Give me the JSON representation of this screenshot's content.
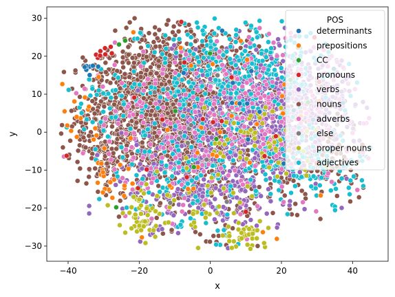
{
  "chart_data": {
    "type": "scatter",
    "xlabel": "x",
    "ylabel": "y",
    "xlim": [
      -46,
      50
    ],
    "ylim": [
      -34,
      33
    ],
    "xticks": [
      -40,
      -20,
      0,
      20,
      40
    ],
    "yticks": [
      -30,
      -20,
      -10,
      0,
      10,
      20,
      30
    ],
    "grid": false,
    "legend": {
      "title": "POS",
      "placement": "top-right",
      "entries": [
        {
          "name": "determinants",
          "color": "#1f77b4"
        },
        {
          "name": "prepositions",
          "color": "#ff7f0e"
        },
        {
          "name": "CC",
          "color": "#2ca02c"
        },
        {
          "name": "pronouns",
          "color": "#d62728"
        },
        {
          "name": "verbs",
          "color": "#9467bd"
        },
        {
          "name": "nouns",
          "color": "#8c564b"
        },
        {
          "name": "adverbs",
          "color": "#e377c2"
        },
        {
          "name": "else",
          "color": "#7f7f7f"
        },
        {
          "name": "proper nouns",
          "color": "#bcbd22"
        },
        {
          "name": "adjectives",
          "color": "#17becf"
        }
      ]
    },
    "series": [
      {
        "name": "nouns",
        "color": "#8c564b",
        "clusters": [
          {
            "x": -15,
            "y": 5,
            "sx": 10,
            "sy": 10,
            "n": 950
          },
          {
            "x": 0,
            "y": -5,
            "sx": 12,
            "sy": 10,
            "n": 450
          },
          {
            "x": -30,
            "y": 2,
            "sx": 5,
            "sy": 8,
            "n": 180
          },
          {
            "x": 28,
            "y": -5,
            "sx": 10,
            "sy": 7,
            "n": 180
          },
          {
            "x": -10,
            "y": 18,
            "sx": 9,
            "sy": 5,
            "n": 220
          },
          {
            "x": 5,
            "y": 12,
            "sx": 10,
            "sy": 8,
            "n": 200
          }
        ]
      },
      {
        "name": "verbs",
        "color": "#9467bd",
        "clusters": [
          {
            "x": 12,
            "y": 3,
            "sx": 11,
            "sy": 9,
            "n": 650
          },
          {
            "x": 28,
            "y": 10,
            "sx": 8,
            "sy": 6,
            "n": 250
          },
          {
            "x": 2,
            "y": -15,
            "sx": 9,
            "sy": 7,
            "n": 150
          },
          {
            "x": -12,
            "y": -12,
            "sx": 8,
            "sy": 8,
            "n": 120
          }
        ]
      },
      {
        "name": "adjectives",
        "color": "#17becf",
        "clusters": [
          {
            "x": 8,
            "y": 15,
            "sx": 13,
            "sy": 8,
            "n": 380
          },
          {
            "x": 28,
            "y": -8,
            "sx": 10,
            "sy": 5,
            "n": 140
          },
          {
            "x": -8,
            "y": -10,
            "sx": 10,
            "sy": 9,
            "n": 130
          },
          {
            "x": -30,
            "y": 8,
            "sx": 5,
            "sy": 6,
            "n": 50
          }
        ]
      },
      {
        "name": "adverbs",
        "color": "#e377c2",
        "clusters": [
          {
            "x": 15,
            "y": 5,
            "sx": 14,
            "sy": 10,
            "n": 230
          },
          {
            "x": -15,
            "y": 0,
            "sx": 12,
            "sy": 12,
            "n": 120
          }
        ]
      },
      {
        "name": "proper nouns",
        "color": "#bcbd22",
        "clusters": [
          {
            "x": 10,
            "y": -27,
            "sx": 3,
            "sy": 2,
            "n": 40
          },
          {
            "x": -19,
            "y": -22,
            "sx": 3,
            "sy": 3,
            "n": 50
          },
          {
            "x": 15,
            "y": -3,
            "sx": 8,
            "sy": 6,
            "n": 60
          },
          {
            "x": -5,
            "y": -20,
            "sx": 10,
            "sy": 5,
            "n": 40
          }
        ]
      },
      {
        "name": "prepositions",
        "color": "#ff7f0e",
        "clusters": [
          {
            "x": -37,
            "y": 4,
            "sx": 3,
            "sy": 5,
            "n": 20
          },
          {
            "x": -28,
            "y": -12,
            "sx": 3,
            "sy": 3,
            "n": 15
          },
          {
            "x": 0,
            "y": 0,
            "sx": 20,
            "sy": 14,
            "n": 40
          }
        ]
      },
      {
        "name": "determinants",
        "color": "#1f77b4",
        "clusters": [
          {
            "x": -34,
            "y": 17,
            "sx": 1.2,
            "sy": 0.8,
            "n": 8
          },
          {
            "x": 20,
            "y": 8,
            "sx": 15,
            "sy": 10,
            "n": 20
          }
        ]
      },
      {
        "name": "pronouns",
        "color": "#d62728",
        "clusters": [
          {
            "x": -30,
            "y": 21,
            "sx": 1.5,
            "sy": 0.8,
            "n": 8
          },
          {
            "x": 0,
            "y": 0,
            "sx": 18,
            "sy": 14,
            "n": 18
          }
        ]
      },
      {
        "name": "CC",
        "color": "#2ca02c",
        "clusters": [
          {
            "x": -25,
            "y": 23,
            "sx": 1,
            "sy": 1,
            "n": 2
          },
          {
            "x": 5,
            "y": 0,
            "sx": 15,
            "sy": 10,
            "n": 8
          }
        ]
      },
      {
        "name": "else",
        "color": "#7f7f7f",
        "clusters": [
          {
            "x": 0,
            "y": 0,
            "sx": 18,
            "sy": 12,
            "n": 15
          }
        ]
      }
    ]
  }
}
